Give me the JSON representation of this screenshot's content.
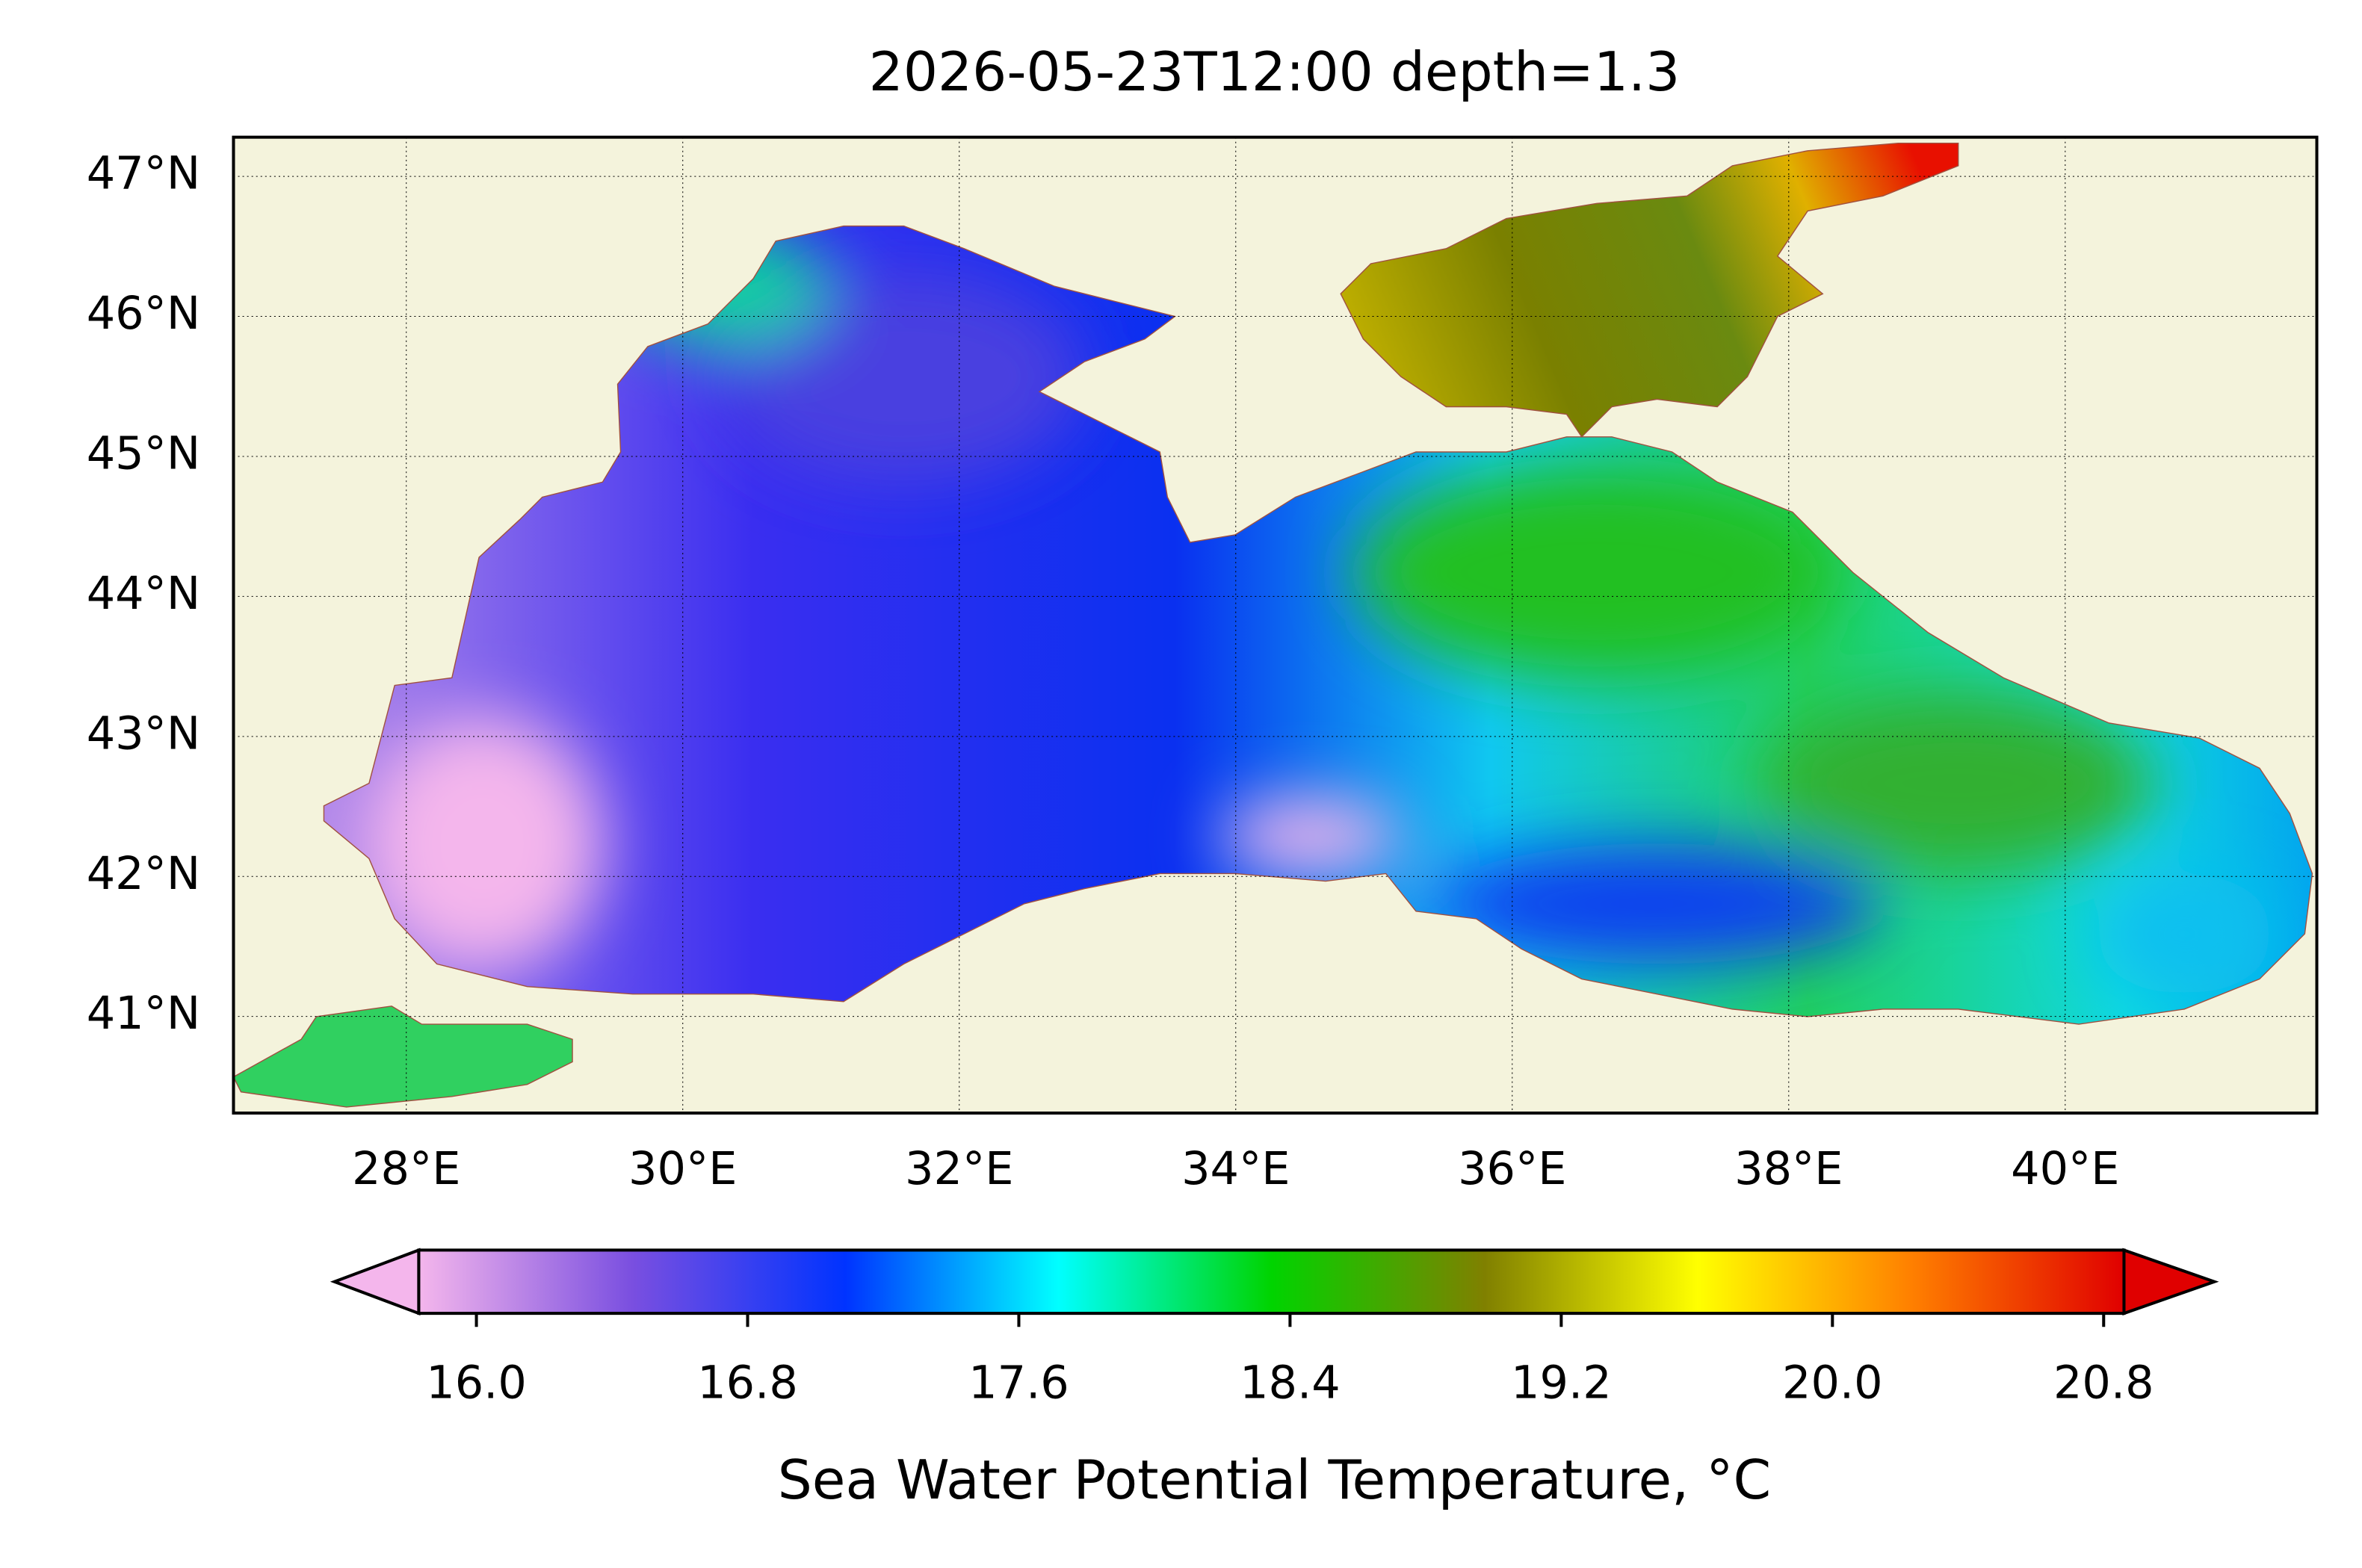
{
  "chart_data": {
    "type": "map",
    "title": "2026-05-23T12:00 depth=1.3",
    "xlim": [
      26.75,
      41.82
    ],
    "ylim": [
      40.31,
      47.28
    ],
    "xticks": [
      {
        "value": 28,
        "label": "28°E"
      },
      {
        "value": 30,
        "label": "30°E"
      },
      {
        "value": 32,
        "label": "32°E"
      },
      {
        "value": 34,
        "label": "34°E"
      },
      {
        "value": 36,
        "label": "36°E"
      },
      {
        "value": 38,
        "label": "38°E"
      },
      {
        "value": 40,
        "label": "40°E"
      }
    ],
    "yticks": [
      {
        "value": 41,
        "label": "41°N"
      },
      {
        "value": 42,
        "label": "42°N"
      },
      {
        "value": 43,
        "label": "43°N"
      },
      {
        "value": 44,
        "label": "44°N"
      },
      {
        "value": 45,
        "label": "45°N"
      },
      {
        "value": 46,
        "label": "46°N"
      },
      {
        "value": 47,
        "label": "47°N"
      }
    ],
    "grid": true,
    "colorbar": {
      "label": "Sea Water Potential Temperature, °C",
      "clim": [
        15.83,
        20.86
      ],
      "ticks": [
        {
          "value": 16,
          "label": "16.0"
        },
        16.8,
        17.6,
        18.4,
        19.2,
        {
          "value": 20,
          "label": "20.0"
        },
        20.8
      ],
      "colors": [
        "#f4b6ec",
        "#7a4fe0",
        "#0033ff",
        "#00ffff",
        "#00d400",
        "#808000",
        "#ffff00",
        "#ff8000",
        "#e00000"
      ]
    }
  }
}
